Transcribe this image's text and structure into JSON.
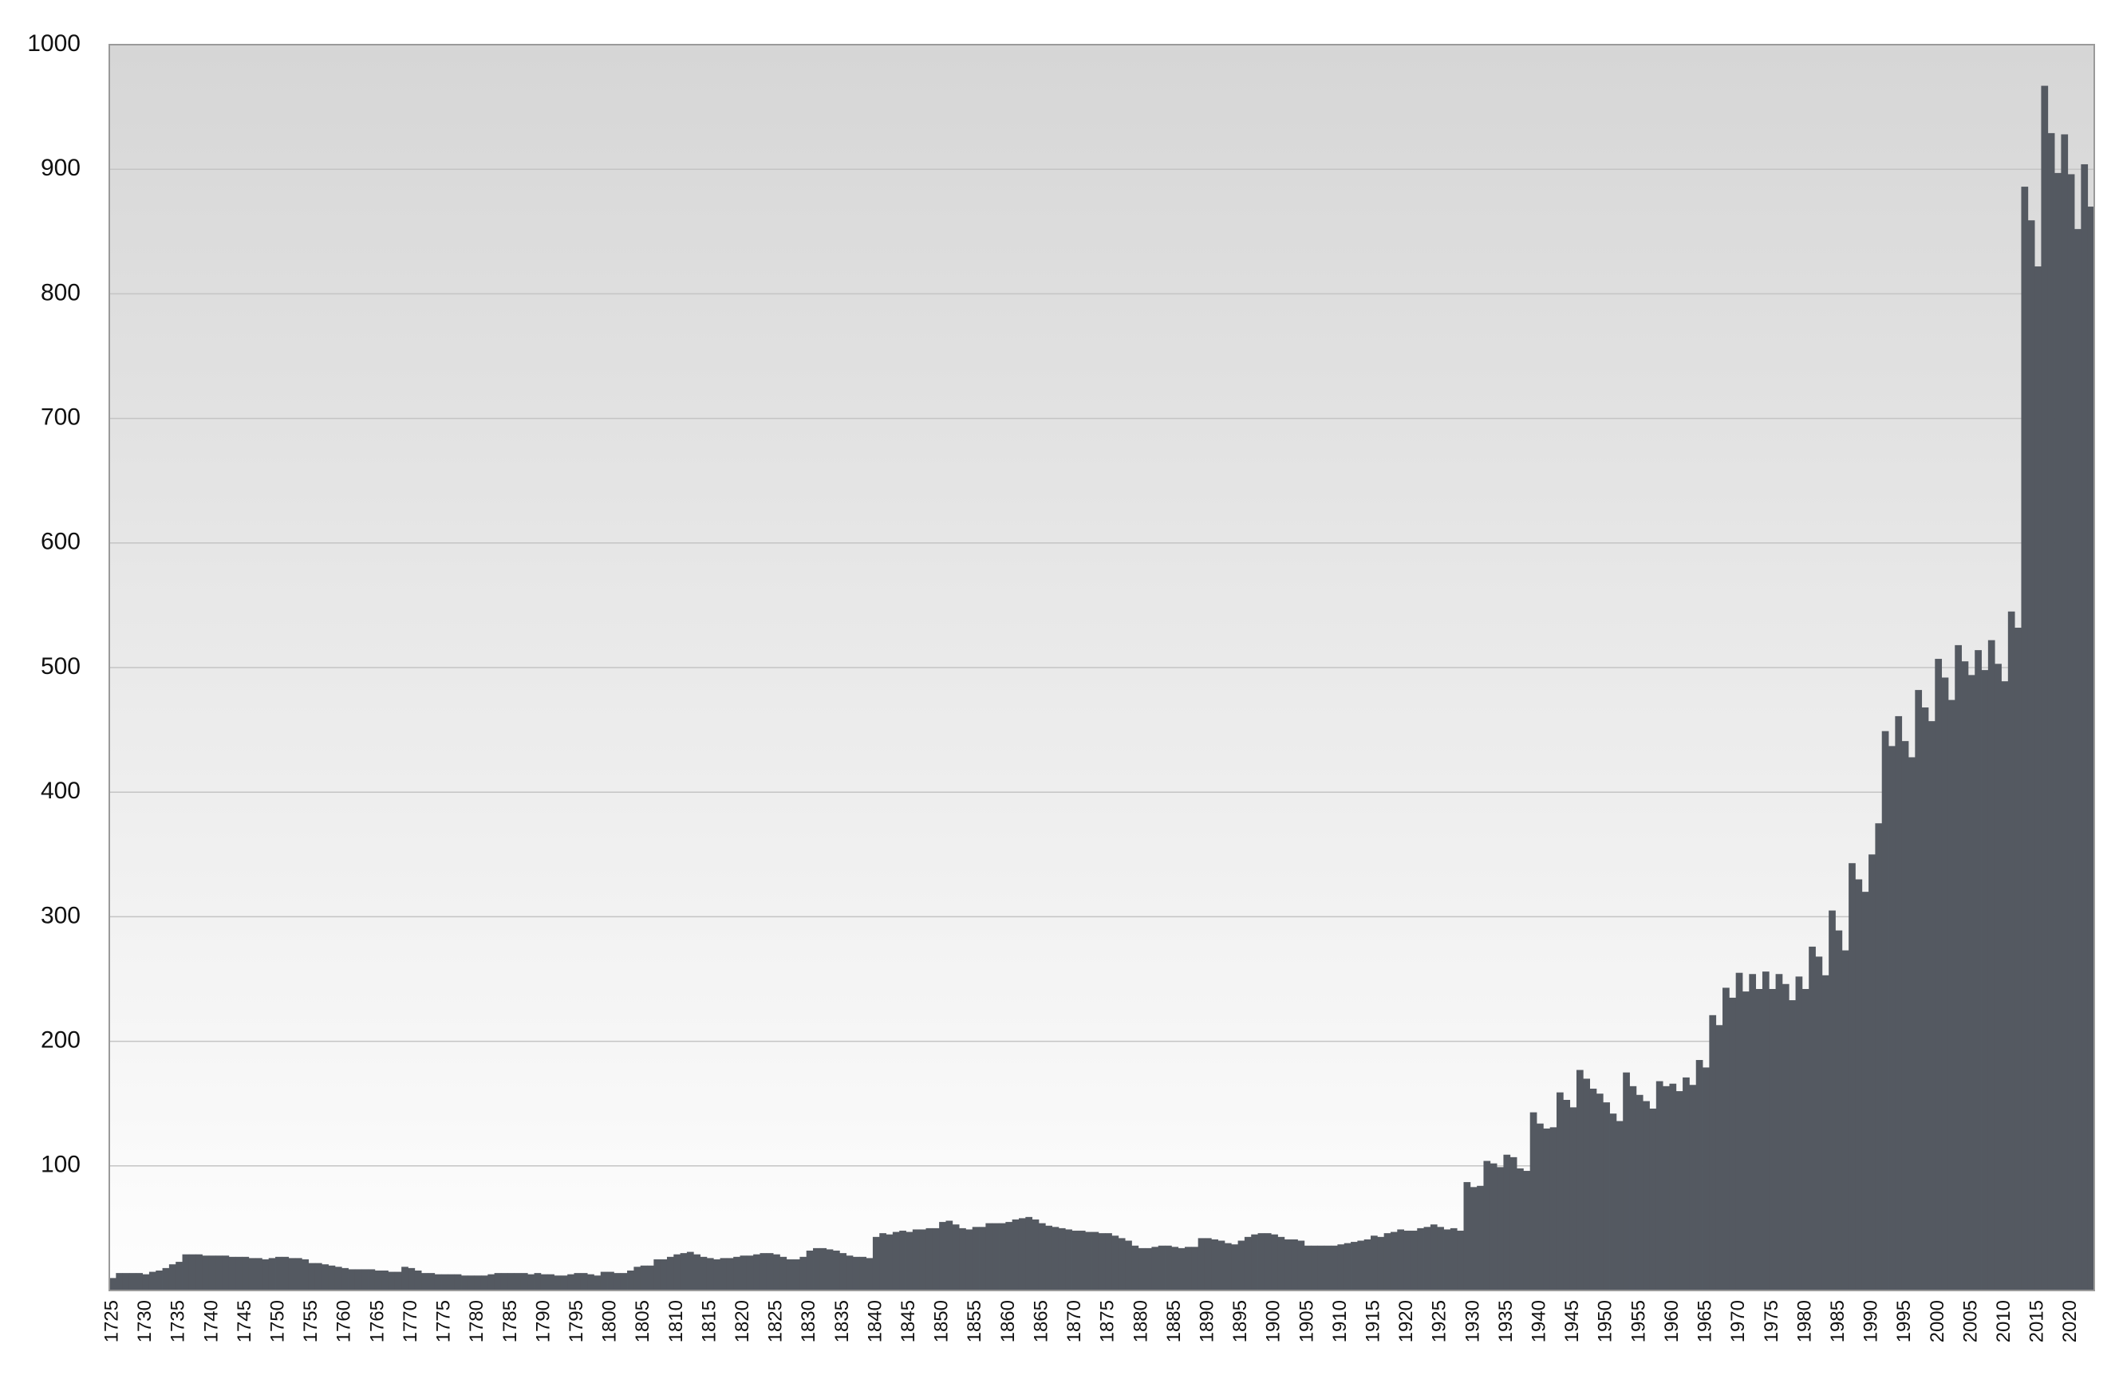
{
  "chart_data": {
    "type": "bar",
    "color": "#545961",
    "grid": true,
    "ylim": [
      0,
      1000
    ],
    "yticks": [
      100,
      200,
      300,
      400,
      500,
      600,
      700,
      800,
      900,
      1000
    ],
    "xlim": [
      1724.5,
      2023.5
    ],
    "xticks": [
      1725,
      1730,
      1735,
      1740,
      1745,
      1750,
      1755,
      1760,
      1765,
      1770,
      1775,
      1780,
      1785,
      1790,
      1795,
      1800,
      1805,
      1810,
      1815,
      1820,
      1825,
      1830,
      1835,
      1840,
      1845,
      1850,
      1855,
      1860,
      1865,
      1870,
      1875,
      1880,
      1885,
      1890,
      1895,
      1900,
      1905,
      1910,
      1915,
      1920,
      1925,
      1930,
      1935,
      1940,
      1945,
      1950,
      1955,
      1960,
      1965,
      1970,
      1975,
      1980,
      1985,
      1990,
      1995,
      2000,
      2005,
      2010,
      2015,
      2020
    ],
    "x": [
      1725,
      1726,
      1727,
      1728,
      1729,
      1730,
      1731,
      1732,
      1733,
      1734,
      1735,
      1736,
      1737,
      1738,
      1739,
      1740,
      1741,
      1742,
      1743,
      1744,
      1745,
      1746,
      1747,
      1748,
      1749,
      1750,
      1751,
      1752,
      1753,
      1754,
      1755,
      1756,
      1757,
      1758,
      1759,
      1760,
      1761,
      1762,
      1763,
      1764,
      1765,
      1766,
      1767,
      1768,
      1769,
      1770,
      1771,
      1772,
      1773,
      1774,
      1775,
      1776,
      1777,
      1778,
      1779,
      1780,
      1781,
      1782,
      1783,
      1784,
      1785,
      1786,
      1787,
      1788,
      1789,
      1790,
      1791,
      1792,
      1793,
      1794,
      1795,
      1796,
      1797,
      1798,
      1799,
      1800,
      1801,
      1802,
      1803,
      1804,
      1805,
      1806,
      1807,
      1808,
      1809,
      1810,
      1811,
      1812,
      1813,
      1814,
      1815,
      1816,
      1817,
      1818,
      1819,
      1820,
      1821,
      1822,
      1823,
      1824,
      1825,
      1826,
      1827,
      1828,
      1829,
      1830,
      1831,
      1832,
      1833,
      1834,
      1835,
      1836,
      1837,
      1838,
      1839,
      1840,
      1841,
      1842,
      1843,
      1844,
      1845,
      1846,
      1847,
      1848,
      1849,
      1850,
      1851,
      1852,
      1853,
      1854,
      1855,
      1856,
      1857,
      1858,
      1859,
      1860,
      1861,
      1862,
      1863,
      1864,
      1865,
      1866,
      1867,
      1868,
      1869,
      1870,
      1871,
      1872,
      1873,
      1874,
      1875,
      1876,
      1877,
      1878,
      1879,
      1880,
      1881,
      1882,
      1883,
      1884,
      1885,
      1886,
      1887,
      1888,
      1889,
      1890,
      1891,
      1892,
      1893,
      1894,
      1895,
      1896,
      1897,
      1898,
      1899,
      1900,
      1901,
      1902,
      1903,
      1904,
      1905,
      1906,
      1907,
      1908,
      1909,
      1910,
      1911,
      1912,
      1913,
      1914,
      1915,
      1916,
      1917,
      1918,
      1919,
      1920,
      1921,
      1922,
      1923,
      1924,
      1925,
      1926,
      1927,
      1928,
      1929,
      1930,
      1931,
      1932,
      1933,
      1934,
      1935,
      1936,
      1937,
      1938,
      1939,
      1940,
      1941,
      1942,
      1943,
      1944,
      1945,
      1946,
      1947,
      1948,
      1949,
      1950,
      1951,
      1952,
      1953,
      1954,
      1955,
      1956,
      1957,
      1958,
      1959,
      1960,
      1961,
      1962,
      1963,
      1964,
      1965,
      1966,
      1967,
      1968,
      1969,
      1970,
      1971,
      1972,
      1973,
      1974,
      1975,
      1976,
      1977,
      1978,
      1979,
      1980,
      1981,
      1982,
      1983,
      1984,
      1985,
      1986,
      1987,
      1988,
      1989,
      1990,
      1991,
      1992,
      1993,
      1994,
      1995,
      1996,
      1997,
      1998,
      1999,
      2000,
      2001,
      2002,
      2003,
      2004,
      2005,
      2006,
      2007,
      2008,
      2009,
      2010,
      2011,
      2012,
      2013,
      2014,
      2015,
      2016,
      2017,
      2018,
      2019,
      2020,
      2021,
      2022,
      2023
    ],
    "values": [
      10,
      14,
      14,
      14,
      14,
      13,
      15,
      16,
      18,
      21,
      23,
      29,
      29,
      29,
      28,
      28,
      28,
      28,
      27,
      27,
      27,
      26,
      26,
      25,
      26,
      27,
      27,
      26,
      26,
      25,
      22,
      22,
      21,
      20,
      19,
      18,
      17,
      17,
      17,
      17,
      16,
      16,
      15,
      15,
      19,
      18,
      16,
      14,
      14,
      13,
      13,
      13,
      13,
      12,
      12,
      12,
      12,
      13,
      14,
      14,
      14,
      14,
      14,
      13,
      14,
      13,
      13,
      12,
      12,
      13,
      14,
      14,
      13,
      12,
      15,
      15,
      14,
      14,
      16,
      19,
      20,
      20,
      25,
      25,
      27,
      29,
      30,
      31,
      29,
      27,
      26,
      25,
      26,
      26,
      27,
      28,
      28,
      29,
      30,
      30,
      29,
      27,
      25,
      25,
      27,
      32,
      34,
      34,
      33,
      32,
      30,
      28,
      27,
      27,
      26,
      43,
      46,
      45,
      47,
      48,
      47,
      49,
      49,
      50,
      50,
      55,
      56,
      53,
      50,
      49,
      51,
      51,
      54,
      54,
      54,
      55,
      57,
      58,
      59,
      57,
      54,
      52,
      51,
      50,
      49,
      48,
      48,
      47,
      47,
      46,
      46,
      44,
      42,
      40,
      36,
      34,
      34,
      35,
      36,
      36,
      35,
      34,
      35,
      35,
      42,
      42,
      41,
      40,
      38,
      37,
      40,
      43,
      45,
      46,
      46,
      45,
      43,
      41,
      41,
      40,
      36,
      36,
      36,
      36,
      36,
      37,
      38,
      39,
      40,
      41,
      44,
      43,
      46,
      47,
      49,
      48,
      48,
      50,
      51,
      53,
      51,
      49,
      50,
      48,
      87,
      83,
      84,
      104,
      102,
      99,
      109,
      107,
      98,
      96,
      143,
      134,
      130,
      131,
      159,
      153,
      147,
      177,
      170,
      162,
      158,
      151,
      142,
      136,
      175,
      164,
      157,
      152,
      146,
      168,
      164,
      166,
      160,
      171,
      165,
      185,
      179,
      221,
      213,
      243,
      235,
      255,
      240,
      254,
      242,
      256,
      242,
      254,
      246,
      233,
      252,
      242,
      276,
      268,
      253,
      305,
      289,
      273,
      343,
      330,
      320,
      350,
      375,
      449,
      437,
      461,
      441,
      428,
      482,
      468,
      457,
      507,
      492,
      474,
      518,
      505,
      494,
      514,
      498,
      522,
      503,
      489,
      545,
      532,
      886,
      859,
      822,
      967,
      929,
      897,
      928,
      896,
      852,
      904,
      870
    ]
  }
}
